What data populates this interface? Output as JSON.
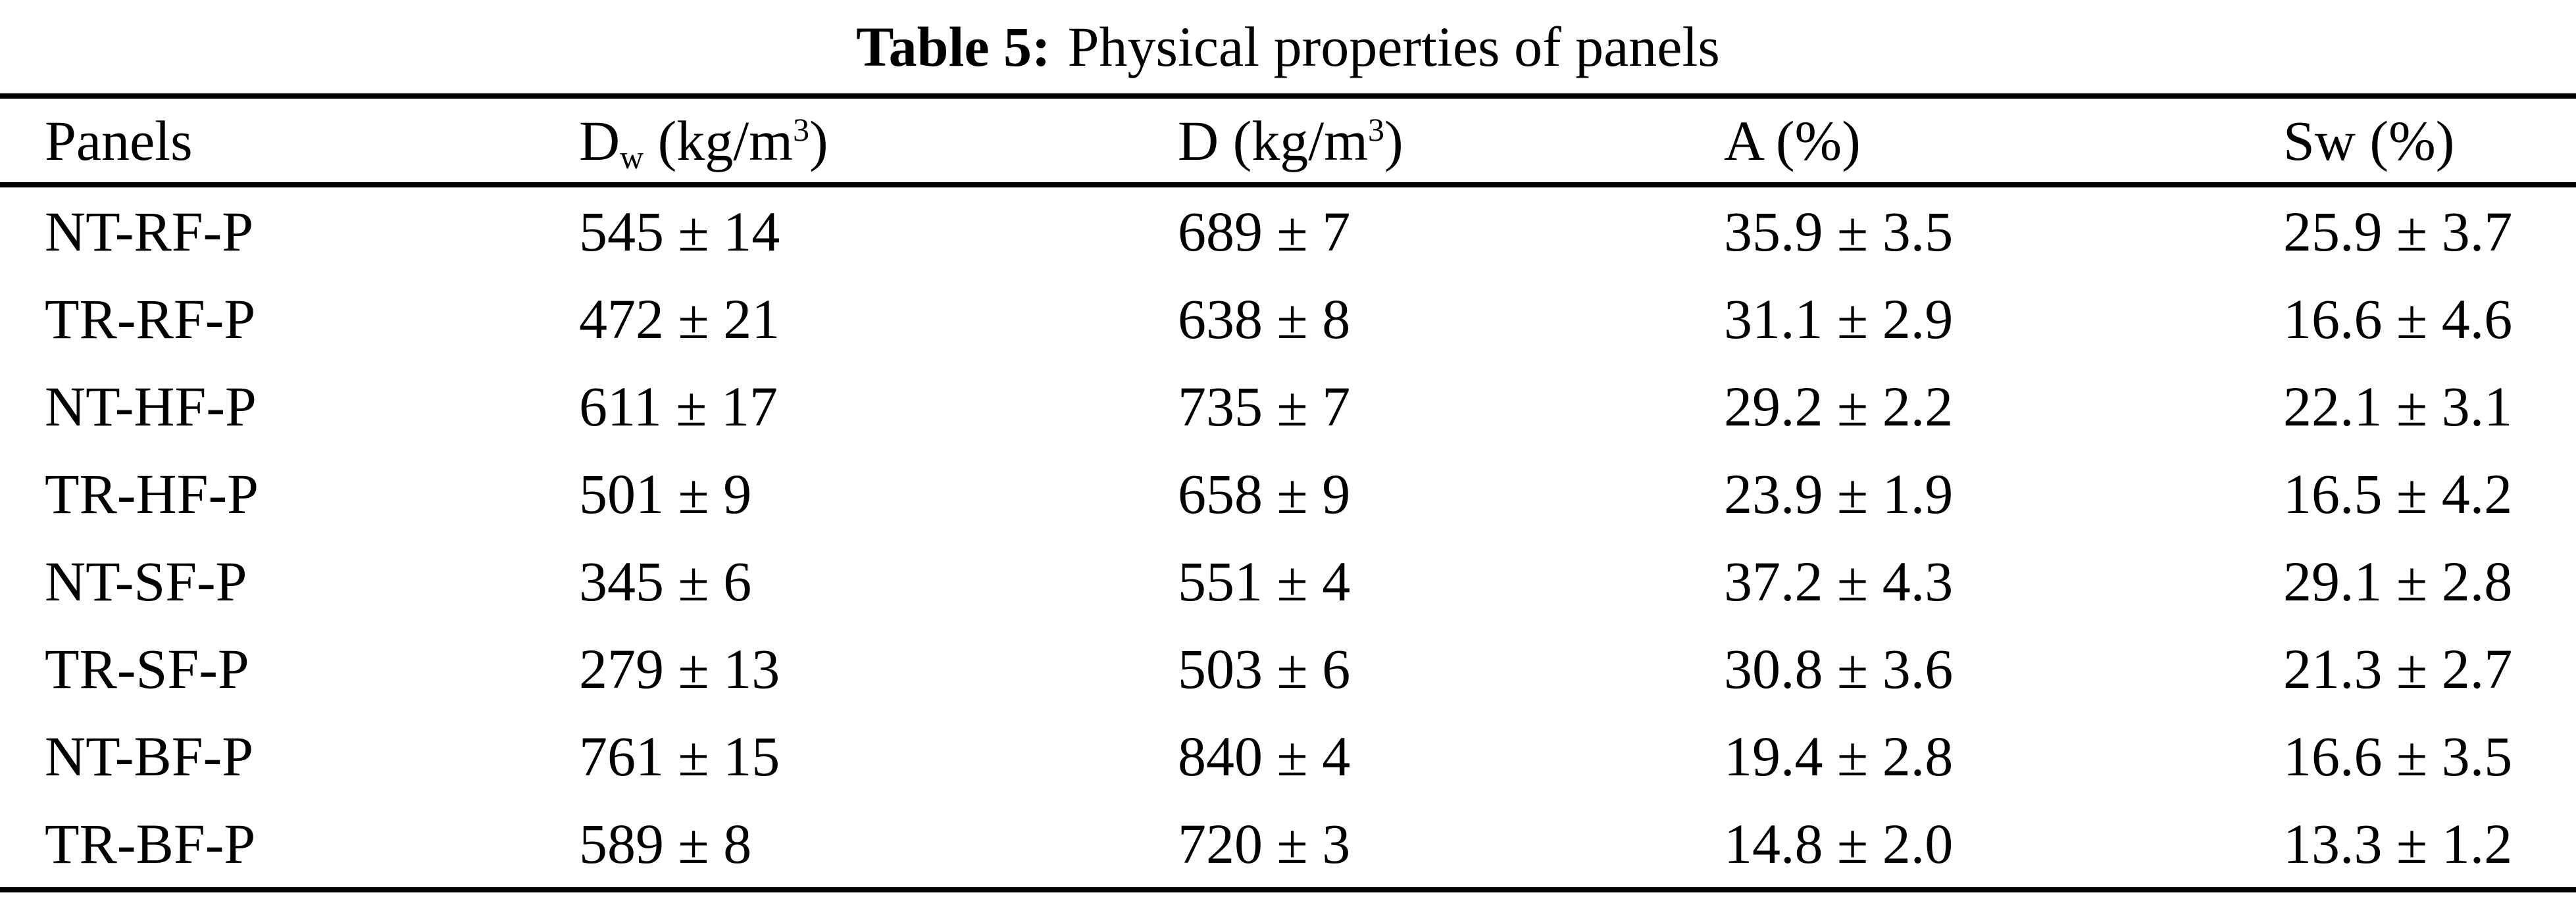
{
  "caption": {
    "label": "Table 5:",
    "text": "Physical properties of panels"
  },
  "table": {
    "headers": [
      {
        "pre": "Panels",
        "sub": "",
        "mid": "",
        "sup": "",
        "post": ""
      },
      {
        "pre": "D",
        "sub": "w",
        "mid": " (kg/m",
        "sup": "3",
        "post": ")"
      },
      {
        "pre": "D",
        "sub": "",
        "mid": " (kg/m",
        "sup": "3",
        "post": ")"
      },
      {
        "pre": "A (%)",
        "sub": "",
        "mid": "",
        "sup": "",
        "post": ""
      },
      {
        "pre": "Sw (%)",
        "sub": "",
        "mid": "",
        "sup": "",
        "post": ""
      }
    ],
    "rows": [
      {
        "panel": "NT-RF-P",
        "dw": "545 ± 14",
        "d": "689 ± 7",
        "a": "35.9 ± 3.5",
        "sw": "25.9 ± 3.7"
      },
      {
        "panel": "TR-RF-P",
        "dw": "472 ± 21",
        "d": "638 ± 8",
        "a": "31.1 ± 2.9",
        "sw": "16.6 ± 4.6"
      },
      {
        "panel": "NT-HF-P",
        "dw": "611 ± 17",
        "d": "735 ± 7",
        "a": "29.2 ± 2.2",
        "sw": "22.1 ± 3.1"
      },
      {
        "panel": "TR-HF-P",
        "dw": "501 ± 9",
        "d": "658 ± 9",
        "a": "23.9 ± 1.9",
        "sw": "16.5 ± 4.2"
      },
      {
        "panel": "NT-SF-P",
        "dw": "345 ± 6",
        "d": "551 ± 4",
        "a": "37.2 ± 4.3",
        "sw": "29.1 ± 2.8"
      },
      {
        "panel": "TR-SF-P",
        "dw": "279 ± 13",
        "d": "503 ± 6",
        "a": "30.8 ± 3.6",
        "sw": "21.3 ± 2.7"
      },
      {
        "panel": "NT-BF-P",
        "dw": "761 ± 15",
        "d": "840 ± 4",
        "a": "19.4 ± 2.8",
        "sw": "16.6 ± 3.5"
      },
      {
        "panel": "TR-BF-P",
        "dw": "589 ± 8",
        "d": "720 ± 3",
        "a": "14.8 ± 2.0",
        "sw": "13.3 ± 1.2"
      }
    ]
  },
  "colors": {
    "text": "#000000",
    "background": "#ffffff",
    "rule": "#000000"
  }
}
